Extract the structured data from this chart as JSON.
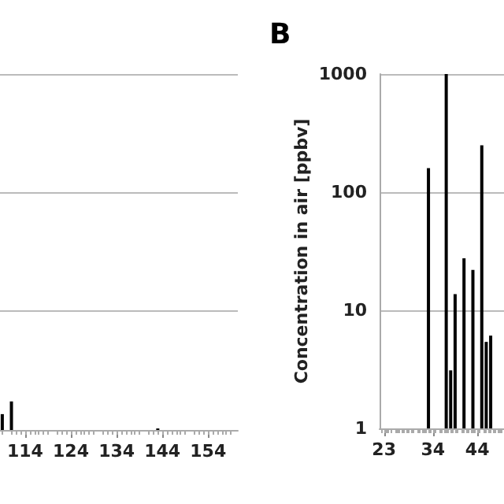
{
  "chart_data": [
    {
      "type": "bar",
      "x": [
        109,
        111,
        143
      ],
      "values": [
        1.36,
        1.74,
        1.03
      ],
      "color": "#000000",
      "log": true,
      "grid": "y",
      "tick_labels": "x",
      "xlim": [
        108.5,
        160.5
      ],
      "xticks": [
        114,
        124,
        134,
        144,
        154
      ],
      "ylim": [
        1,
        1000
      ],
      "yticks": [
        {
          "value": 1,
          "label": null
        },
        {
          "value": 10,
          "label": null
        },
        {
          "value": 100,
          "label": null
        },
        {
          "value": 1000,
          "label": null
        }
      ]
    },
    {
      "type": "bar",
      "title": "B",
      "ylabel": "Concentration in air [ppbv]",
      "x": [
        33,
        37,
        38,
        39,
        41,
        43,
        45,
        46,
        47
      ],
      "values": [
        160,
        1000,
        3.1,
        13.7,
        27.5,
        22,
        249,
        5.4,
        6.1
      ],
      "color": "#000000",
      "log": true,
      "grid": "y",
      "xlim": [
        22,
        50
      ],
      "xticks": [
        23,
        34,
        44
      ],
      "ylim": [
        1,
        1000
      ],
      "yticks": [
        1,
        10,
        100,
        1000
      ]
    }
  ]
}
